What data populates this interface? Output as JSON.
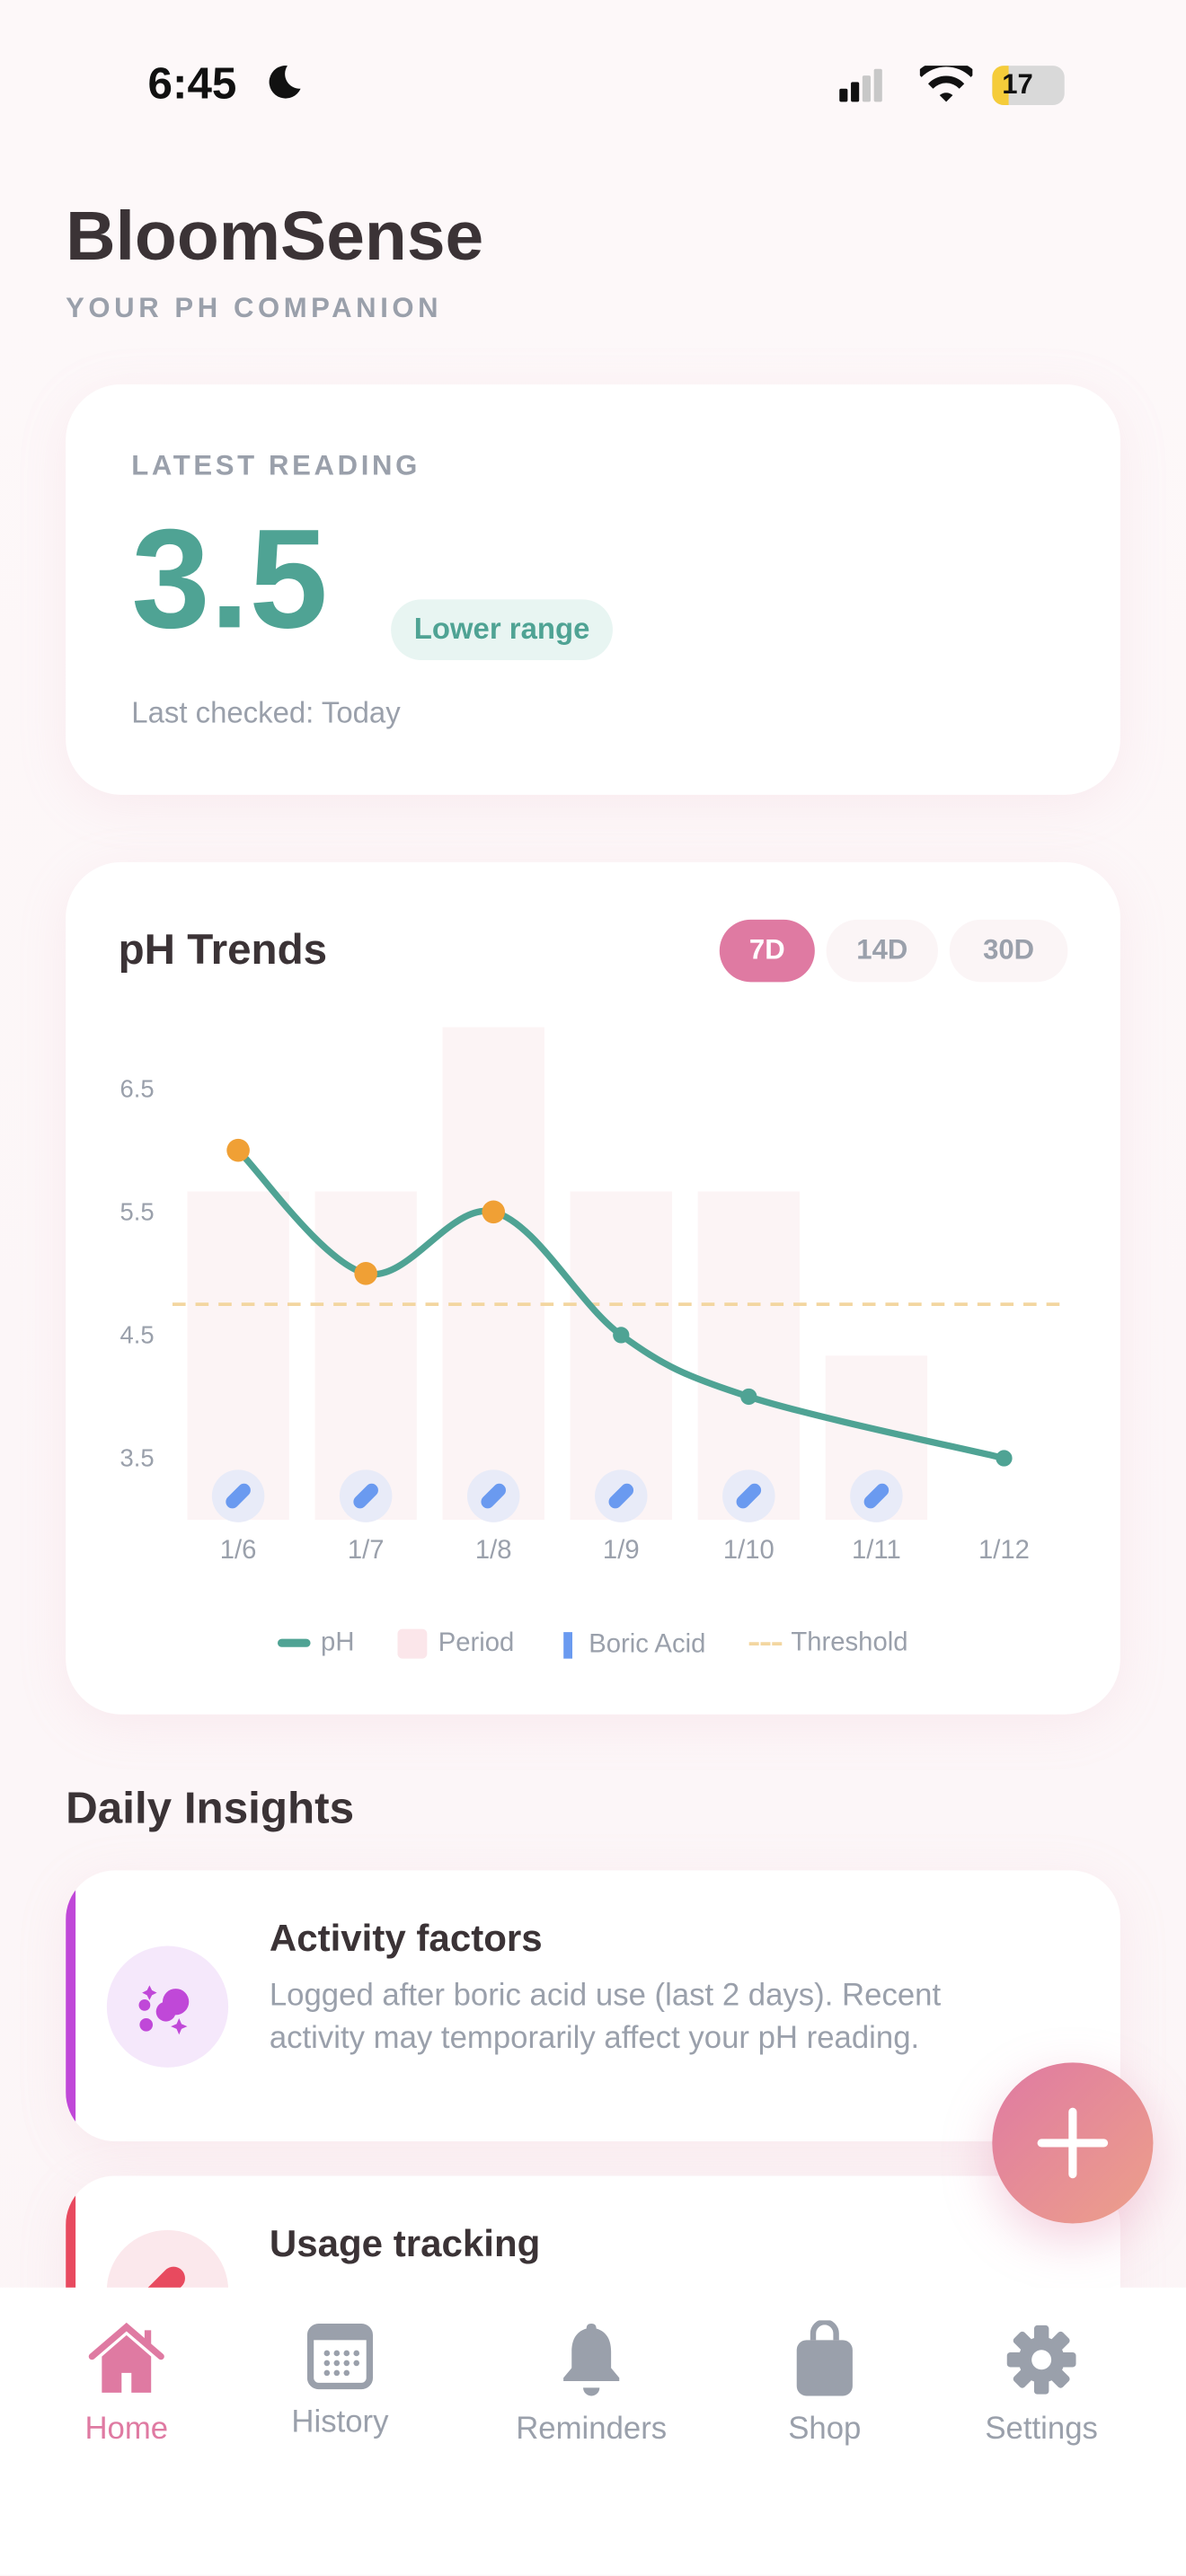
{
  "status_bar": {
    "time": "6:45",
    "battery": "17"
  },
  "app": {
    "title": "BloomSense",
    "subtitle": "YOUR PH COMPANION"
  },
  "latest_reading": {
    "label": "LATEST READING",
    "value": "3.5",
    "badge": "Lower range",
    "last_checked": "Last checked: Today"
  },
  "trends": {
    "title": "pH Trends",
    "ranges": [
      {
        "label": "7D",
        "active": true
      },
      {
        "label": "14D",
        "active": false
      },
      {
        "label": "30D",
        "active": false
      }
    ]
  },
  "chart_data": {
    "type": "line",
    "categories": [
      "1/6",
      "1/7",
      "1/8",
      "1/9",
      "1/10",
      "1/11",
      "1/12"
    ],
    "y_ticks": [
      "6.5",
      "5.5",
      "4.5",
      "3.5"
    ],
    "ylim": [
      3.0,
      7.0
    ],
    "series": [
      {
        "name": "pH",
        "values": [
          6.0,
          5.0,
          5.5,
          4.5,
          4.0,
          null,
          3.5
        ],
        "color": "#4fa394",
        "above_threshold_color": "#f0a035"
      }
    ],
    "period_levels": [
      2,
      2,
      3,
      2,
      2,
      1,
      0
    ],
    "boric_acid": [
      true,
      true,
      true,
      true,
      true,
      true,
      false
    ],
    "threshold": 4.75,
    "legend": [
      "pH",
      "Period",
      "Boric Acid",
      "Threshold"
    ],
    "legend_position": "bottom",
    "grid": false
  },
  "insights": {
    "title": "Daily Insights",
    "items": [
      {
        "title": "Activity factors",
        "body": "Logged after boric acid use (last 2 days). Recent activity may temporarily affect your pH reading.",
        "accent": "#c048d8"
      },
      {
        "title": "Usage tracking",
        "body": "",
        "accent": "#e84a5f"
      }
    ]
  },
  "nav": [
    {
      "label": "Home",
      "active": true
    },
    {
      "label": "History"
    },
    {
      "label": "Reminders"
    },
    {
      "label": "Shop"
    },
    {
      "label": "Settings"
    }
  ],
  "colors": {
    "accent": "#df7aa2",
    "teal": "#4fa394",
    "orange": "#f0a035",
    "gray": "#9aa0ab"
  }
}
